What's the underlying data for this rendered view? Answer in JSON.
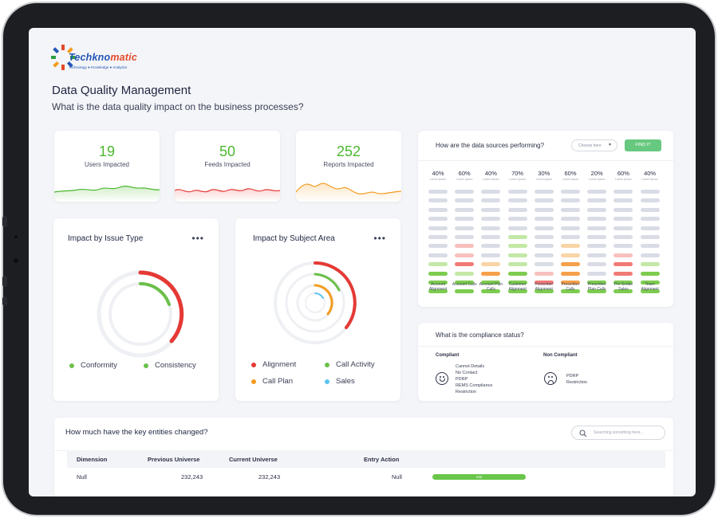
{
  "brand": {
    "logo_prefix": "Techkno",
    "logo_suffix": "matic",
    "tagline": "Technology ● Knowledge ● Analytics"
  },
  "page": {
    "title": "Data Quality Management",
    "subtitle": "What is the data quality impact on the business processes?"
  },
  "kpis": [
    {
      "value": "19",
      "label": "Users Impacted",
      "color": "#4cb82f"
    },
    {
      "value": "50",
      "label": "Feeds Impacted",
      "color": "#4cb82f"
    },
    {
      "value": "252",
      "label": "Reports Impacted",
      "color": "#4cb82f"
    }
  ],
  "impact_issue": {
    "title": "Impact by Issue Type",
    "menu_icon": "more-horizontal-icon",
    "legend": [
      {
        "label": "Conformity",
        "color": "#6cc04a"
      },
      {
        "label": "Consistency",
        "color": "#6cc04a"
      }
    ]
  },
  "impact_subject": {
    "title": "Impact by Subject Area",
    "menu_icon": "more-horizontal-icon",
    "legend": [
      {
        "label": "Alignment",
        "color": "#e53935"
      },
      {
        "label": "Call Activity",
        "color": "#6cc04a"
      },
      {
        "label": "Call Plan",
        "color": "#f39c20"
      },
      {
        "label": "Sales",
        "color": "#5bc4f0"
      }
    ]
  },
  "data_sources": {
    "question": "How are the data sources performing?",
    "select_placeholder": "Choose here",
    "find_button": "FIND IT",
    "sub_label": "Lorem Ipsum",
    "columns": [
      {
        "pct": "40%",
        "name": "Account Alignment",
        "bars": [
          "n",
          "n",
          "n",
          "n",
          "n",
          "n",
          "n",
          "n",
          "lg",
          "g",
          "g",
          "g"
        ]
      },
      {
        "pct": "60%",
        "name": "Account Calls",
        "bars": [
          "n",
          "n",
          "n",
          "n",
          "n",
          "n",
          "lr",
          "lr",
          "r",
          "lg",
          "g",
          "g"
        ]
      },
      {
        "pct": "40%",
        "name": "Account Plan Calls",
        "bars": [
          "n",
          "n",
          "n",
          "n",
          "n",
          "n",
          "n",
          "n",
          "lo",
          "o",
          "g",
          "g"
        ]
      },
      {
        "pct": "70%",
        "name": "Customer Alignment",
        "bars": [
          "n",
          "n",
          "n",
          "n",
          "n",
          "lg",
          "lg",
          "lg",
          "lg",
          "g",
          "g",
          "g"
        ]
      },
      {
        "pct": "30%",
        "name": "Prescriber Alignment",
        "bars": [
          "n",
          "n",
          "n",
          "n",
          "n",
          "n",
          "n",
          "n",
          "n",
          "lr",
          "r",
          "g"
        ]
      },
      {
        "pct": "60%",
        "name": "Prescriber Calls",
        "bars": [
          "n",
          "n",
          "n",
          "n",
          "n",
          "n",
          "lo",
          "lo",
          "o",
          "o",
          "o",
          "g"
        ]
      },
      {
        "pct": "20%",
        "name": "Prescriber Plan Calls",
        "bars": [
          "n",
          "n",
          "n",
          "n",
          "n",
          "n",
          "n",
          "n",
          "n",
          "n",
          "g",
          "g"
        ]
      },
      {
        "pct": "60%",
        "name": "Pre Scribe Sales",
        "bars": [
          "n",
          "n",
          "n",
          "n",
          "n",
          "n",
          "n",
          "lr",
          "r",
          "r",
          "g",
          "g"
        ]
      },
      {
        "pct": "40%",
        "name": "Team Alignment",
        "bars": [
          "n",
          "n",
          "n",
          "n",
          "n",
          "n",
          "n",
          "n",
          "lg",
          "g",
          "g",
          "g"
        ]
      }
    ],
    "bar_colors": {
      "n": "#d9dce5",
      "g": "#7dcc4f",
      "lg": "#c3e8a6",
      "r": "#f07a76",
      "lr": "#f7c0bd",
      "o": "#f6a04a",
      "lo": "#f8d4a6"
    }
  },
  "compliance": {
    "question": "What is the compliance status?",
    "compliant_title": "Compliant",
    "compliant_items": [
      "Cannot Details",
      "No Contact",
      "PDRP",
      "REMS Compliance",
      "Restriction"
    ],
    "noncompliant_title": "Non Compliant",
    "noncompliant_items": [
      "PDRP",
      "Restriction"
    ]
  },
  "entities": {
    "question": "How much have the key entities changed?",
    "search_placeholder": "Searching something here...",
    "headers": [
      "Dimension",
      "Previous Universe",
      "Current Universe",
      "Entry Action"
    ],
    "rows": [
      {
        "dimension": "Null",
        "previous": "232,243",
        "current": "232,243",
        "action": "Null",
        "bar_label": "132"
      }
    ]
  }
}
